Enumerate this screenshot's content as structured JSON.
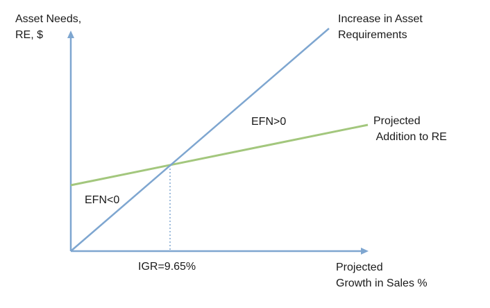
{
  "axes": {
    "y_label": "Asset Needs,\nRE, $",
    "x_label": "Projected\nGrowth in Sales %"
  },
  "lines": {
    "asset_requirements_label": "Increase in Asset\nRequirements",
    "retained_earnings_label": "Projected\n Addition to RE"
  },
  "regions": {
    "above_label": "EFN>0",
    "below_label": "EFN<0"
  },
  "marker": {
    "igr_label": "IGR=9.65%"
  },
  "colors": {
    "axis": "#7ea6d0",
    "asset_line": "#7ea6d0",
    "re_line": "#a3c77d",
    "dotted_guide": "#7ea6d0"
  }
}
